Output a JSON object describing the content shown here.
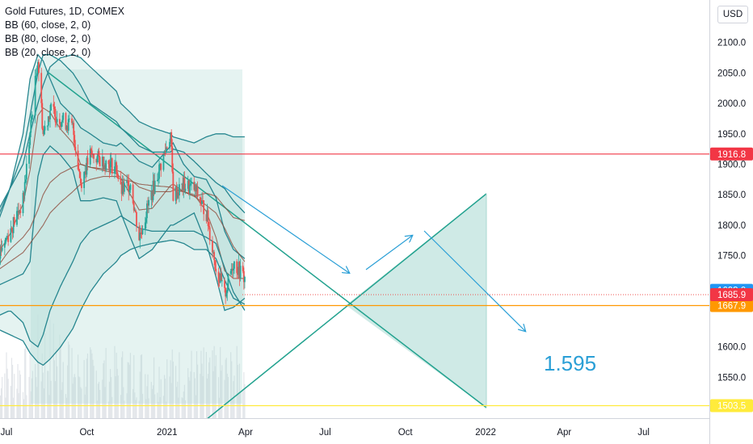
{
  "legend": {
    "symbol": "Gold Futures, 1D, COMEX",
    "indicators": [
      "BB (60, close, 2, 0)",
      "BB (80, close, 2, 0)",
      "BB (20, close, 2, 0)"
    ]
  },
  "currency_badge": "USD",
  "chart_data": {
    "type": "line",
    "price_axis": {
      "range": [
        1465,
        2160
      ],
      "ticks": [
        2100,
        2050,
        2000,
        1950,
        1900,
        1850,
        1800,
        1750,
        1600,
        1550
      ],
      "tick_labels": [
        "2100.0",
        "2050.0",
        "2000.0",
        "1950.0",
        "1900.0",
        "1850.0",
        "1800.0",
        "1750.0",
        "1600.0",
        "1550.0"
      ],
      "position": "right"
    },
    "time_axis": {
      "ticks": [
        "2020-07-01",
        "2020-10-01",
        "2021-01-01",
        "2021-04-01",
        "2021-07-01",
        "2021-10-01",
        "2022-01-01",
        "2022-04-01",
        "2022-07-01"
      ],
      "tick_labels": [
        "Jul",
        "Oct",
        "2021",
        "Apr",
        "Jul",
        "Oct",
        "2022",
        "Apr",
        "Jul"
      ]
    },
    "close_series": {
      "x": [
        "2020-06-20",
        "2020-07-05",
        "2020-07-20",
        "2020-07-28",
        "2020-08-06",
        "2020-08-12",
        "2020-08-20",
        "2020-09-01",
        "2020-09-15",
        "2020-09-24",
        "2020-10-05",
        "2020-10-20",
        "2020-11-04",
        "2020-11-09",
        "2020-11-20",
        "2020-11-30",
        "2020-12-15",
        "2021-01-05",
        "2021-01-08",
        "2021-01-20",
        "2021-02-01",
        "2021-02-15",
        "2021-02-26",
        "2021-03-08",
        "2021-03-18",
        "2021-03-31"
      ],
      "y": [
        1750,
        1790,
        1840,
        1950,
        2075,
        1950,
        1990,
        1975,
        1960,
        1870,
        1915,
        1905,
        1895,
        1855,
        1870,
        1780,
        1855,
        1950,
        1850,
        1865,
        1860,
        1820,
        1730,
        1685,
        1740,
        1712
      ]
    },
    "bands": [
      {
        "name": "BB (20, close, 2, 0)",
        "upper": [
          1800,
          1860,
          1950,
          2040,
          2080,
          2070,
          2040,
          2000,
          1980,
          1960,
          1950,
          1935,
          1930,
          1935,
          1920,
          1905,
          1895,
          1930,
          1935,
          1900,
          1880,
          1875,
          1845,
          1790,
          1760,
          1745
        ],
        "lower": [
          1700,
          1710,
          1720,
          1740,
          1880,
          1915,
          1930,
          1915,
          1890,
          1840,
          1840,
          1845,
          1840,
          1820,
          1780,
          1745,
          1760,
          1800,
          1800,
          1810,
          1820,
          1770,
          1715,
          1660,
          1665,
          1680
        ]
      },
      {
        "name": "BB (60, close, 2, 0)",
        "upper": [
          1810,
          1860,
          1920,
          1980,
          2050,
          2080,
          2080,
          2070,
          2050,
          2030,
          2000,
          1985,
          1970,
          1960,
          1945,
          1930,
          1920,
          1920,
          1925,
          1920,
          1905,
          1885,
          1870,
          1860,
          1840,
          1820
        ],
        "lower": [
          1650,
          1660,
          1640,
          1610,
          1600,
          1620,
          1660,
          1700,
          1740,
          1770,
          1790,
          1800,
          1810,
          1815,
          1805,
          1795,
          1790,
          1790,
          1790,
          1790,
          1790,
          1780,
          1770,
          1730,
          1690,
          1660
        ]
      },
      {
        "name": "BB (80, close, 2, 0)",
        "upper": [
          1820,
          1860,
          1900,
          1950,
          2000,
          2030,
          2060,
          2075,
          2080,
          2075,
          2060,
          2040,
          2020,
          2000,
          1985,
          1970,
          1960,
          1950,
          1945,
          1940,
          1935,
          1945,
          1950,
          1950,
          1945,
          1945
        ],
        "lower": [
          1630,
          1620,
          1610,
          1590,
          1575,
          1570,
          1580,
          1600,
          1630,
          1660,
          1690,
          1720,
          1740,
          1750,
          1760,
          1765,
          1770,
          1775,
          1775,
          1770,
          1760,
          1760,
          1745,
          1710,
          1680,
          1670
        ]
      }
    ],
    "horizontal_levels": [
      {
        "value": 1916.8,
        "label": "1916.8",
        "color": "#f23645"
      },
      {
        "value": 1667.9,
        "label": "1667.9",
        "color": "#ff9800"
      },
      {
        "value": 1503.5,
        "label": "1503.5",
        "color": "#ffeb3b"
      }
    ],
    "price_tags": [
      {
        "value": 1693.0,
        "label": "1693.0",
        "color": "#2196f3"
      },
      {
        "value": 1685.9,
        "label": "1685.9",
        "color": "#f23645"
      }
    ],
    "annotation_text": "1.595",
    "colors": {
      "band_fill": "#cfe9e6",
      "band_line": "#26868f",
      "triangle_fill": "#a8d8d1",
      "triangle_line": "#22a28f",
      "arrow": "#2a9fd6",
      "candle_up": "#26a69a",
      "candle_down": "#ef5350",
      "volume": "#e3e6ea"
    },
    "grid": false,
    "legend_position": "top-left"
  }
}
